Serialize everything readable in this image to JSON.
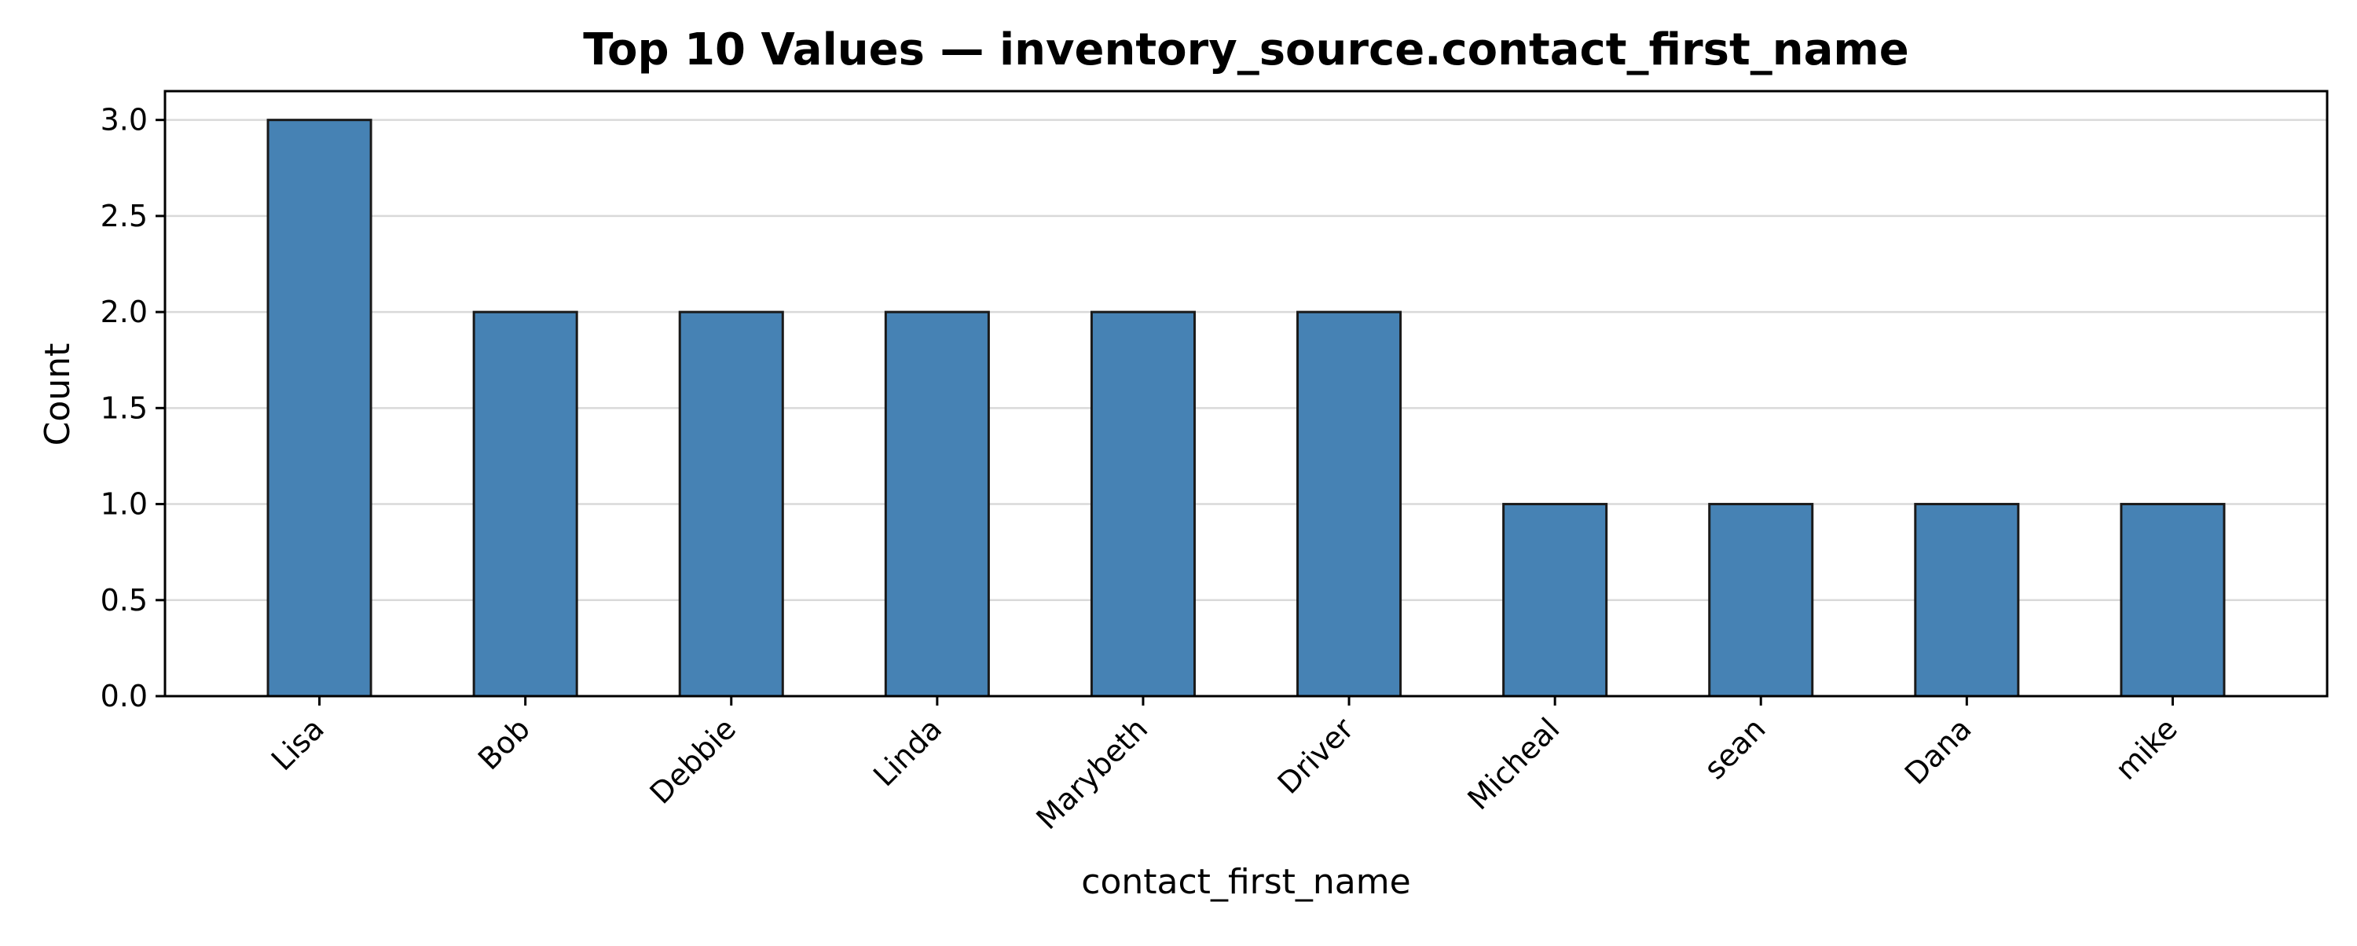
{
  "chart_data": {
    "type": "bar",
    "title": "Top 10 Values — inventory_source.contact_first_name",
    "xlabel": "contact_first_name",
    "ylabel": "Count",
    "categories": [
      "Lisa",
      "Bob",
      "Debbie",
      "Linda",
      "Marybeth",
      "Driver",
      "Micheal",
      "sean",
      "Dana",
      "mike"
    ],
    "values": [
      3,
      2,
      2,
      2,
      2,
      2,
      1,
      1,
      1,
      1
    ],
    "ylim": [
      0,
      3.15
    ],
    "yticks": [
      0.0,
      0.5,
      1.0,
      1.5,
      2.0,
      2.5,
      3.0
    ],
    "ytick_labels": [
      "0.0",
      "0.5",
      "1.0",
      "1.5",
      "2.0",
      "2.5",
      "3.0"
    ],
    "grid": "horizontal",
    "colors": {
      "bar_fill": "#4682b4",
      "bar_edge": "#1a1a1a",
      "grid": "#d9d9d9",
      "axis": "#000000"
    }
  }
}
